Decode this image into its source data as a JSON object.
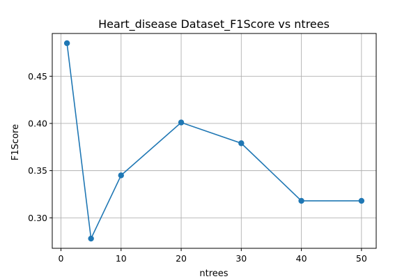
{
  "chart_data": {
    "type": "line",
    "title": "Heart_disease Dataset_F1Score vs ntrees",
    "xlabel": "ntrees",
    "ylabel": "F1Score",
    "x": [
      1,
      5,
      10,
      20,
      30,
      40,
      50
    ],
    "series": [
      {
        "values": [
          0.485,
          0.278,
          0.345,
          0.401,
          0.379,
          0.318,
          0.318
        ]
      }
    ],
    "xlim": [
      -1.45,
      52.45
    ],
    "ylim": [
      0.2677,
      0.4953
    ],
    "xticks": [
      0,
      10,
      20,
      30,
      40,
      50
    ],
    "xtick_labels": [
      "0",
      "10",
      "20",
      "30",
      "40",
      "50"
    ],
    "yticks": [
      0.3,
      0.35,
      0.4,
      0.45
    ],
    "ytick_labels": [
      "0.30",
      "0.35",
      "0.40",
      "0.45"
    ],
    "grid": true,
    "marker": "circle",
    "color": "#1f77b4"
  }
}
